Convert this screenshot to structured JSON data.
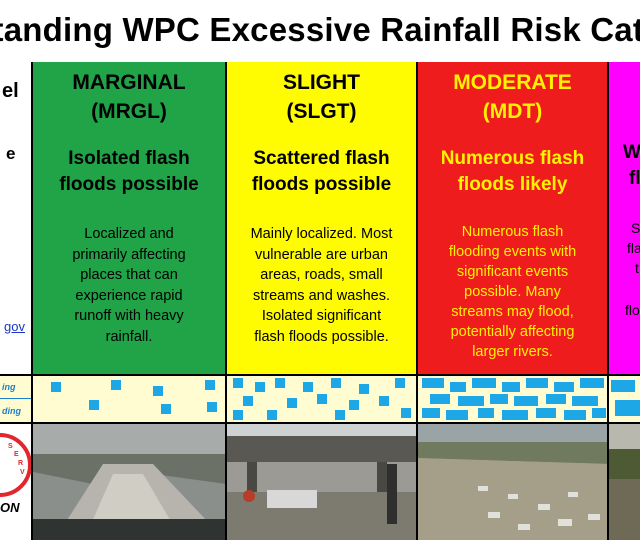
{
  "title": "standing WPC Excessive Rainfall Risk Cate",
  "left_panel": {
    "frag_top": "el",
    "frag_mid": "e",
    "frag_link": "gov",
    "band_label_1": "ing",
    "band_label_2": "ding",
    "logo_text": "ON"
  },
  "categories": [
    {
      "level": "MARGINAL",
      "code": "(MRGL)",
      "summary_1": "Isolated flash",
      "summary_2": "floods possible",
      "description": [
        "Localized and",
        "primarily affecting",
        "places that can",
        "experience rapid",
        "runoff with heavy",
        "rainfall."
      ],
      "color": "#21a348"
    },
    {
      "level": "SLIGHT",
      "code": "(SLGT)",
      "summary_1": "Scattered flash",
      "summary_2": "floods possible",
      "description": [
        "Mainly localized. Most",
        "vulnerable are urban",
        "areas, roads, small",
        "streams and washes.",
        "Isolated significant",
        "flash floods possible."
      ],
      "color": "#fffb00"
    },
    {
      "level": "MODERATE",
      "code": "(MDT)",
      "summary_1": "Numerous flash",
      "summary_2": "floods likely",
      "description": [
        "Numerous flash",
        "flooding events with",
        "significant events",
        "possible. Many",
        "streams may flood,",
        "potentially affecting",
        "larger rivers."
      ],
      "color": "#ee1c1c"
    },
    {
      "partial_summary_1": "W",
      "partial_summary_2": "fl",
      "partial_desc": [
        "S",
        "fla",
        "t",
        "",
        "flo"
      ],
      "color": "#ff00ff"
    }
  ],
  "colors": {
    "band_bg": "#fffcd2",
    "band_square": "#1ea7e6"
  },
  "icons": {
    "logo": "nws-logo-icon"
  }
}
